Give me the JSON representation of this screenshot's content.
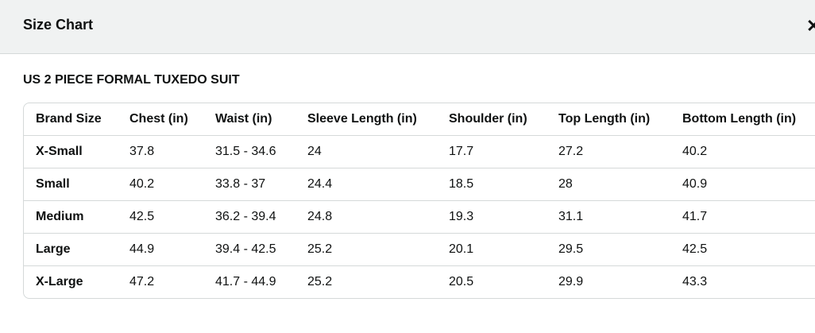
{
  "header": {
    "title": "Size Chart",
    "close_icon": "close-icon"
  },
  "subtitle": "US 2 PIECE FORMAL TUXEDO SUIT",
  "table": {
    "columns": [
      "Brand Size",
      "Chest (in)",
      "Waist (in)",
      "Sleeve Length (in)",
      "Shoulder (in)",
      "Top Length (in)",
      "Bottom Length (in)"
    ],
    "rows": [
      [
        "X-Small",
        "37.8",
        "31.5 - 34.6",
        "24",
        "17.7",
        "27.2",
        "40.2"
      ],
      [
        "Small",
        "40.2",
        "33.8 - 37",
        "24.4",
        "18.5",
        "28",
        "40.9"
      ],
      [
        "Medium",
        "42.5",
        "36.2 - 39.4",
        "24.8",
        "19.3",
        "31.1",
        "41.7"
      ],
      [
        "Large",
        "44.9",
        "39.4 - 42.5",
        "25.2",
        "20.1",
        "29.5",
        "42.5"
      ],
      [
        "X-Large",
        "47.2",
        "41.7 - 44.9",
        "25.2",
        "20.5",
        "29.9",
        "43.3"
      ]
    ]
  }
}
